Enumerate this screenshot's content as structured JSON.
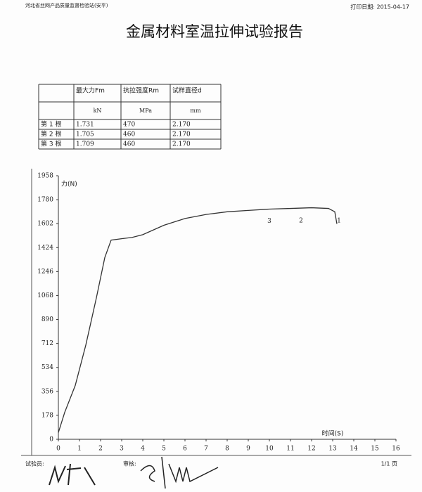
{
  "header": {
    "org": "河北省丝网产品质量监督检验站(安平)",
    "print_date": "打印日期: 2015-04-17",
    "title": "金属材料室温拉伸试验报告"
  },
  "table": {
    "header": [
      "",
      "最大力Fm",
      "抗拉强度Rm",
      "试样直径d"
    ],
    "units": [
      "",
      "kN",
      "MPa",
      "mm"
    ],
    "rows": [
      [
        "第 1 根",
        "1.731",
        "470",
        "2.170"
      ],
      [
        "第 2 根",
        "1.705",
        "460",
        "2.170"
      ],
      [
        "第 3 根",
        "1.709",
        "460",
        "2.170"
      ]
    ]
  },
  "chart_data": {
    "type": "line",
    "ylabel": "力(N)",
    "xlabel": "时间(S)",
    "x": [
      0,
      0.3,
      0.8,
      1.3,
      1.8,
      2.2,
      2.5,
      3,
      3.5,
      4,
      5,
      6,
      7,
      8,
      9,
      10,
      11,
      12,
      12.8,
      13.1,
      13.2
    ],
    "values": [
      50,
      200,
      400,
      700,
      1050,
      1350,
      1480,
      1490,
      1500,
      1520,
      1590,
      1640,
      1670,
      1690,
      1700,
      1710,
      1715,
      1720,
      1715,
      1690,
      1600
    ],
    "color": "#333333",
    "xlim": [
      0,
      16
    ],
    "xticks": [
      0,
      1,
      2,
      3,
      4,
      5,
      6,
      7,
      8,
      9,
      10,
      11,
      12,
      13,
      14,
      15,
      16
    ],
    "ylim": [
      0,
      1958
    ],
    "yticks": [
      0,
      178,
      356,
      534,
      712,
      890,
      1068,
      1246,
      1424,
      1602,
      1780,
      1958
    ],
    "grid": false,
    "annotations": [
      "3",
      "2",
      "1"
    ]
  },
  "footer": {
    "tester": "试验员:",
    "reviewer": "审核:",
    "page": "1/1 页"
  }
}
